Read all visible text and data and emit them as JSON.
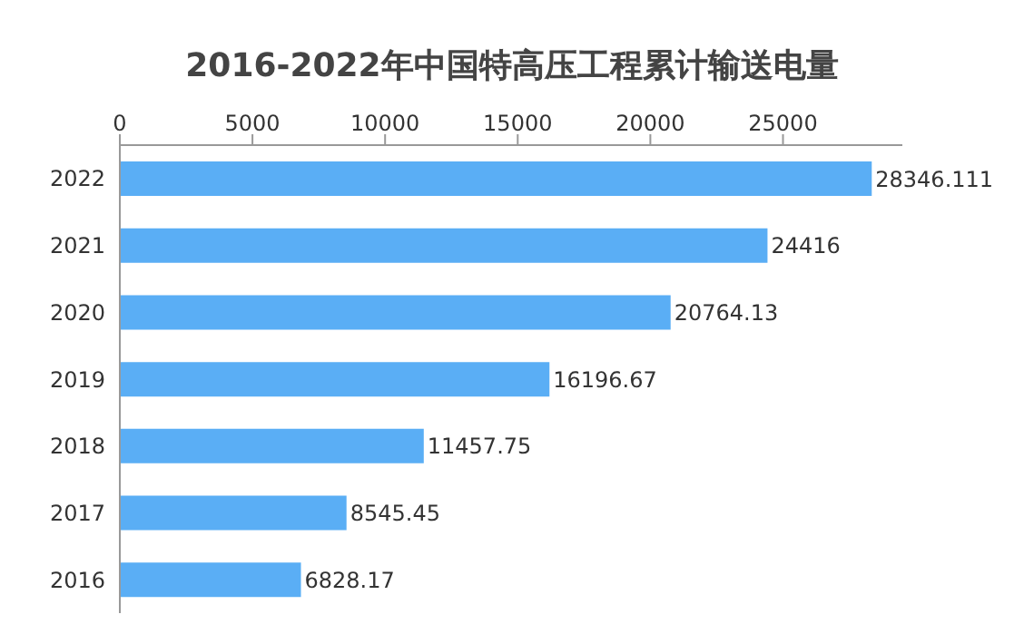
{
  "chart_data": {
    "type": "bar",
    "orientation": "horizontal",
    "title": "2016-2022年中国特高压工程累计输送电量",
    "categories": [
      "2022",
      "2021",
      "2020",
      "2019",
      "2018",
      "2017",
      "2016"
    ],
    "values": [
      28346.111,
      24416,
      20764.13,
      16196.67,
      11457.75,
      8545.45,
      6828.17
    ],
    "color": "#5aaef5",
    "xlim": [
      0,
      29500
    ],
    "xticks": [
      0,
      5000,
      10000,
      15000,
      20000,
      25000
    ],
    "grid": false,
    "data_labels": true
  }
}
